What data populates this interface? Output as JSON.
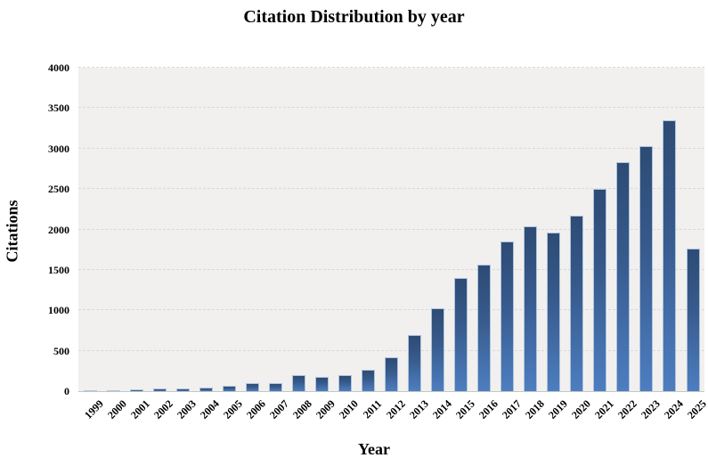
{
  "figure": {
    "title": "Citation Distribution by year",
    "x_axis_title": "Year",
    "y_axis_title": "Citations"
  },
  "chart_data": {
    "type": "bar",
    "title": "Citation Distribution by year",
    "xlabel": "Year",
    "ylabel": "Citations",
    "categories": [
      "1999",
      "2000",
      "2001",
      "2002",
      "2003",
      "2004",
      "2005",
      "2006",
      "2007",
      "2008",
      "2009",
      "2010",
      "2011",
      "2012",
      "2013",
      "2014",
      "2015",
      "2016",
      "2017",
      "2018",
      "2019",
      "2020",
      "2021",
      "2022",
      "2023",
      "2024",
      "2025"
    ],
    "values": [
      15,
      3,
      20,
      35,
      37,
      45,
      70,
      100,
      105,
      200,
      175,
      195,
      270,
      420,
      690,
      1020,
      1400,
      1570,
      1850,
      2040,
      1960,
      2170,
      2505,
      2830,
      3035,
      3350,
      1760
    ],
    "ylim": [
      0,
      4000
    ],
    "yticks": [
      0,
      500,
      1000,
      1500,
      2000,
      2500,
      3000,
      3500,
      4000
    ],
    "grid": "horizontal-dashed",
    "legend": "none",
    "colors": {
      "bar_gradient_top": "#2d4b74",
      "bar_gradient_mid": "#37598b",
      "bar_gradient_bottom": "#4d7ec0",
      "bar_border": "#aec4dd",
      "plot_background": "#f1f0ee",
      "gridline": "#d9d9d9",
      "baseline": "#c6c6c6",
      "text": "#000000",
      "outer_background": "#ffffff"
    }
  }
}
